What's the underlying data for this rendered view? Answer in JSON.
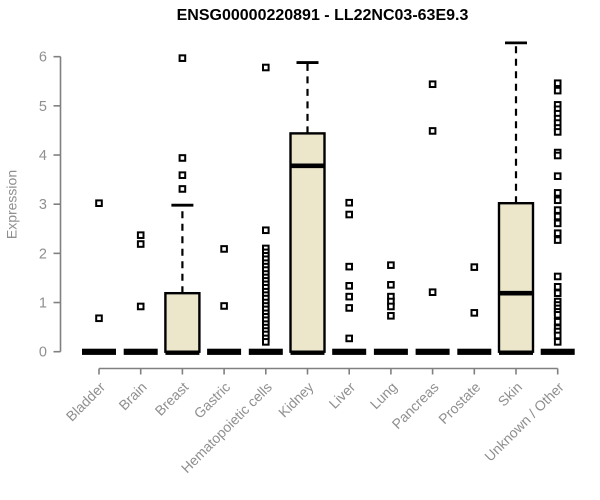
{
  "chart_data": {
    "type": "boxplot",
    "title": "ENSG00000220891 - LL22NC03-63E9.3",
    "ylabel": "Expression",
    "xlabel": "",
    "ylim": [
      0,
      6.4
    ],
    "yticks": [
      0,
      1,
      2,
      3,
      4,
      5,
      6
    ],
    "grid": false,
    "legend": null,
    "box_fill": "#ece7cb",
    "box_stroke": "#000000",
    "axis_color": "#808080",
    "label_color": "#8f8f8f",
    "categories": [
      "Bladder",
      "Brain",
      "Breast",
      "Gastric",
      "Hematopoietic cells",
      "Kidney",
      "Liver",
      "Lung",
      "Pancreas",
      "Prostate",
      "Skin",
      "Unknown / Other"
    ],
    "boxes": [
      {
        "category": "Bladder",
        "q1": 0,
        "median": 0,
        "q3": 0,
        "whisker_low": 0,
        "whisker_high": 0,
        "outliers": [
          3.02,
          0.68
        ]
      },
      {
        "category": "Brain",
        "q1": 0,
        "median": 0,
        "q3": 0,
        "whisker_low": 0,
        "whisker_high": 0,
        "outliers": [
          2.37,
          2.19,
          0.92
        ]
      },
      {
        "category": "Breast",
        "q1": 0,
        "median": 0,
        "q3": 1.19,
        "whisker_low": 0,
        "whisker_high": 2.98,
        "outliers": [
          5.97,
          3.94,
          3.59,
          3.31
        ]
      },
      {
        "category": "Gastric",
        "q1": 0,
        "median": 0,
        "q3": 0,
        "whisker_low": 0,
        "whisker_high": 0,
        "outliers": [
          2.09,
          0.93
        ]
      },
      {
        "category": "Hematopoietic cells",
        "q1": 0,
        "median": 0,
        "q3": 0,
        "whisker_low": 0,
        "whisker_high": 0,
        "outliers": [
          5.78,
          2.47,
          2.1,
          2.02,
          1.95,
          1.88,
          1.8,
          1.73,
          1.66,
          1.58,
          1.51,
          1.44,
          1.37,
          1.3,
          1.22,
          1.15,
          1.08,
          1.0,
          0.93,
          0.86,
          0.78,
          0.71,
          0.64,
          0.56,
          0.49,
          0.42,
          0.35,
          0.27,
          0.2
        ]
      },
      {
        "category": "Kidney",
        "q1": 0,
        "median": 3.78,
        "q3": 4.44,
        "whisker_low": 0,
        "whisker_high": 5.88,
        "outliers": []
      },
      {
        "category": "Liver",
        "q1": 0,
        "median": 0,
        "q3": 0,
        "whisker_low": 0,
        "whisker_high": 0,
        "outliers": [
          3.03,
          2.79,
          1.73,
          1.34,
          1.12,
          0.89,
          0.27
        ]
      },
      {
        "category": "Lung",
        "q1": 0,
        "median": 0,
        "q3": 0,
        "whisker_low": 0,
        "whisker_high": 0,
        "outliers": [
          1.76,
          1.36,
          1.12,
          1.02,
          0.92,
          0.73
        ]
      },
      {
        "category": "Pancreas",
        "q1": 0,
        "median": 0,
        "q3": 0,
        "whisker_low": 0,
        "whisker_high": 0,
        "outliers": [
          5.44,
          4.49,
          1.21
        ]
      },
      {
        "category": "Prostate",
        "q1": 0,
        "median": 0,
        "q3": 0,
        "whisker_low": 0,
        "whisker_high": 0,
        "outliers": [
          1.72,
          0.79
        ]
      },
      {
        "category": "Skin",
        "q1": 0,
        "median": 1.19,
        "q3": 3.02,
        "whisker_low": 0,
        "whisker_high": 6.28,
        "outliers": []
      },
      {
        "category": "Unknown / Other",
        "q1": 0,
        "median": 0,
        "q3": 0,
        "whisker_low": 0,
        "whisker_high": 0,
        "outliers": [
          5.46,
          5.31,
          5.02,
          4.93,
          4.84,
          4.74,
          4.65,
          4.55,
          4.47,
          4.05,
          3.99,
          3.57,
          3.23,
          3.08,
          2.88,
          2.75,
          2.61,
          2.41,
          2.27,
          1.53,
          1.32,
          1.19,
          1.02,
          0.95,
          0.88,
          0.81,
          0.75,
          0.61,
          0.48,
          0.41,
          0.33,
          0.2
        ]
      }
    ]
  }
}
